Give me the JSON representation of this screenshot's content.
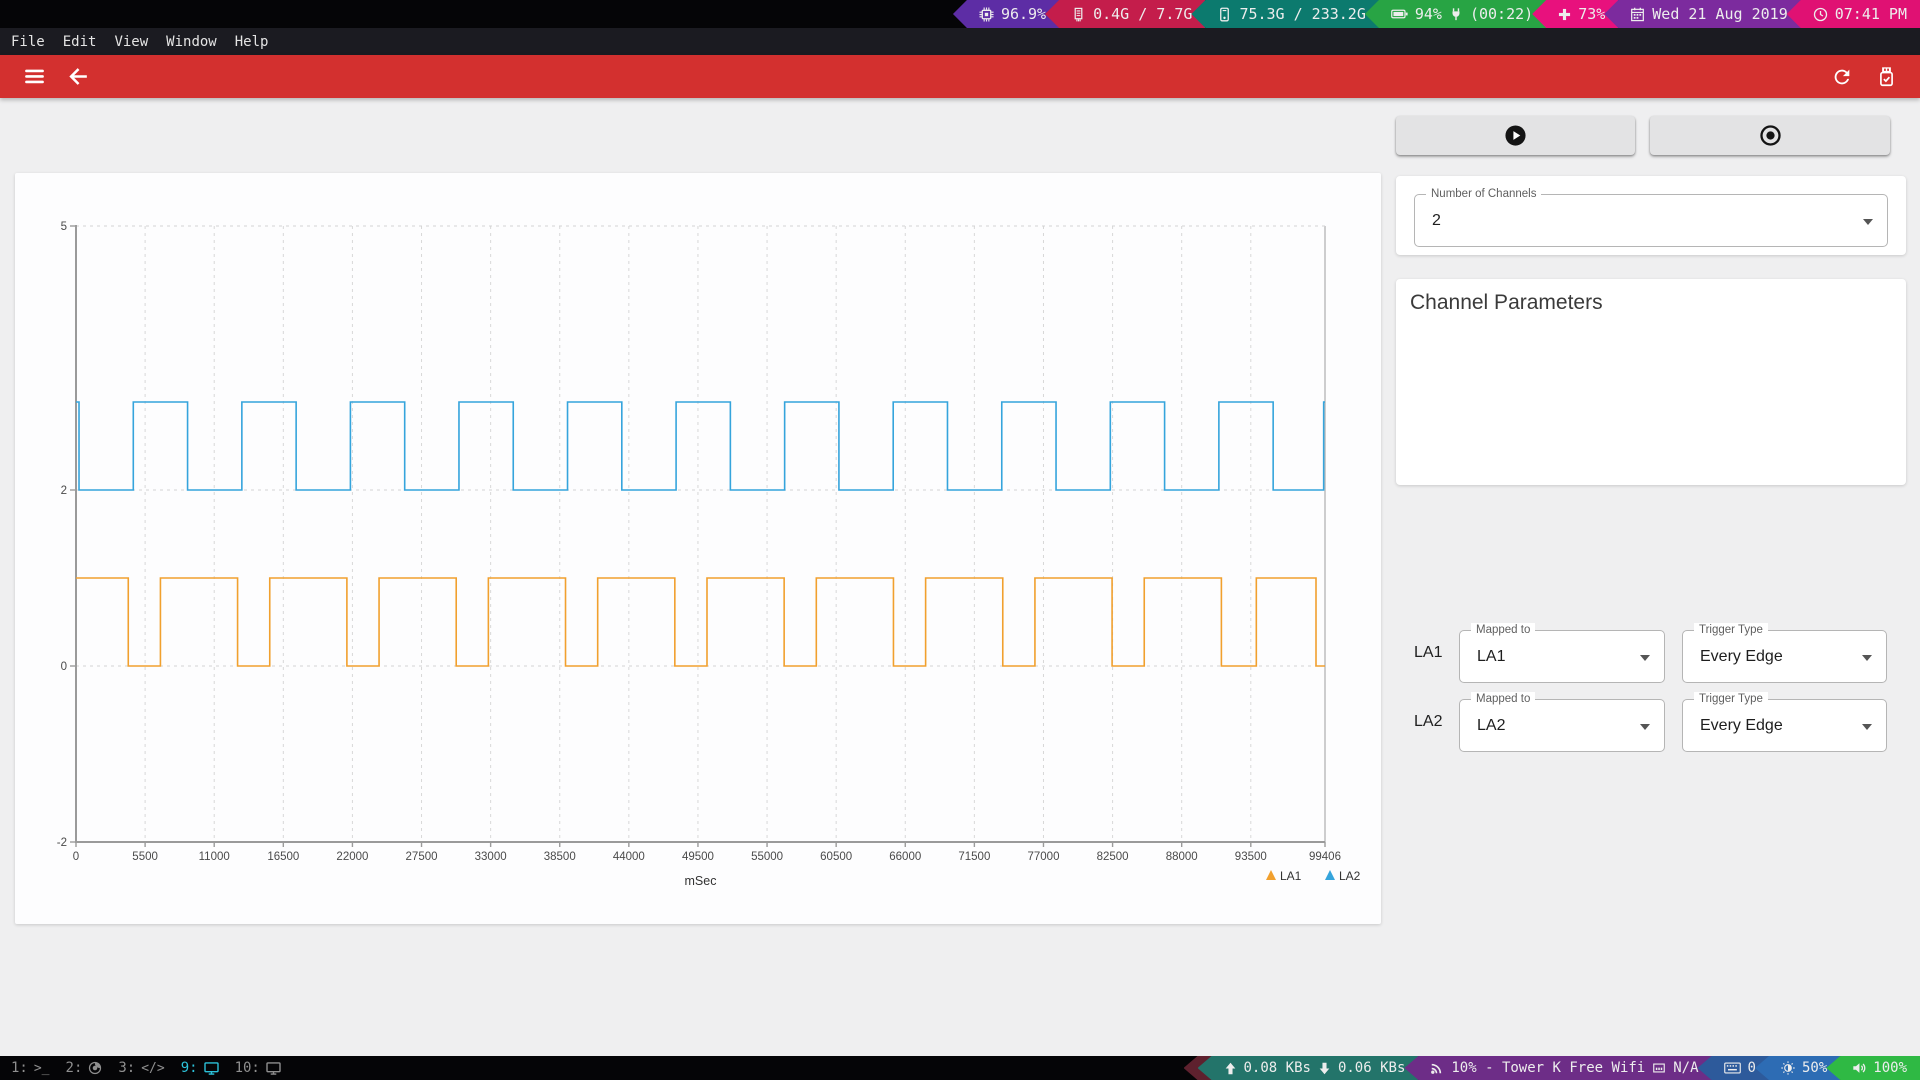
{
  "system_bar": {
    "segments": [
      {
        "name": "cpu-usage",
        "color": "#5d2da5",
        "parts": [
          {
            "icon": "cpu-icon",
            "text": "96.9%"
          }
        ]
      },
      {
        "name": "memory-usage",
        "color": "#c41d4b",
        "parts": [
          {
            "icon": "memory-icon",
            "text": "0.4G / 7.7G"
          }
        ]
      },
      {
        "name": "disk-usage",
        "color": "#0c7a6e",
        "parts": [
          {
            "icon": "disk-icon",
            "text": "75.3G / 233.2G"
          }
        ]
      },
      {
        "name": "battery",
        "color": "#28a444",
        "parts": [
          {
            "icon": "battery-icon",
            "text": "94%"
          },
          {
            "icon": "plug-icon",
            "text": "(00:22)"
          }
        ]
      },
      {
        "name": "updates",
        "color": "#e8117d",
        "parts": [
          {
            "icon": "plus-icon",
            "text": "73%"
          }
        ]
      },
      {
        "name": "date",
        "color": "#7c2b9e",
        "parts": [
          {
            "icon": "calendar-icon",
            "text": "Wed 21 Aug 2019"
          }
        ]
      },
      {
        "name": "clock",
        "color": "#e01173",
        "parts": [
          {
            "icon": "clock-icon",
            "text": "07:41 PM"
          }
        ]
      }
    ]
  },
  "menu_bar": {
    "items": [
      "File",
      "Edit",
      "View",
      "Window",
      "Help"
    ]
  },
  "taskbar": {
    "workspaces": [
      {
        "id": "1",
        "label": "1:",
        "icon": "terminal-icon",
        "glyph": ">_",
        "active": false
      },
      {
        "id": "2",
        "label": "2:",
        "icon": "firefox-icon",
        "glyph": "",
        "active": false
      },
      {
        "id": "3",
        "label": "3:",
        "icon": "code-icon",
        "glyph": "</>",
        "active": false
      },
      {
        "id": "9",
        "label": "9:",
        "icon": "monitor-icon",
        "glyph": "",
        "active": true
      },
      {
        "id": "10",
        "label": "10:",
        "icon": "monitor-icon",
        "glyph": "",
        "active": false
      }
    ],
    "segments": [
      {
        "name": "lead",
        "color": "#5e212e",
        "parts": []
      },
      {
        "name": "network-rate",
        "color": "#23746a",
        "parts": [
          {
            "icon": "upload-icon",
            "text": "0.08 KBs"
          },
          {
            "icon": "download-icon",
            "text": "0.06 KBs"
          }
        ]
      },
      {
        "name": "wifi",
        "color": "#6d2d87",
        "parts": [
          {
            "icon": "wifi-icon",
            "text": "10% - Tower K Free Wifi"
          },
          {
            "icon": "ethernet-icon",
            "text": "N/A"
          }
        ]
      },
      {
        "name": "keyboard-layout",
        "color": "#2d5a9b",
        "parts": [
          {
            "icon": "keyboard-icon",
            "text": "0"
          }
        ]
      },
      {
        "name": "brightness",
        "color": "#2d6cb4",
        "parts": [
          {
            "icon": "brightness-icon",
            "text": "50%"
          }
        ]
      },
      {
        "name": "volume",
        "color": "#2fb944",
        "parts": [
          {
            "icon": "volume-icon",
            "text": "100%"
          }
        ]
      }
    ]
  },
  "side_panel": {
    "number_of_channels": {
      "label": "Number of Channels",
      "value": "2"
    },
    "channel_parameters": {
      "title": "Channel Parameters",
      "rows": [
        {
          "channel": "LA1",
          "mapped": {
            "label": "Mapped to",
            "value": "LA1"
          },
          "trigger": {
            "label": "Trigger Type",
            "value": "Every Edge"
          }
        },
        {
          "channel": "LA2",
          "mapped": {
            "label": "Mapped to",
            "value": "LA2"
          },
          "trigger": {
            "label": "Trigger Type",
            "value": "Every Edge"
          }
        }
      ]
    }
  },
  "chart_data": {
    "type": "line",
    "title": "",
    "xlabel": "mSec",
    "ylabel": "",
    "xlim": [
      0,
      99406
    ],
    "ylim": [
      -2,
      5
    ],
    "x_ticks": [
      0,
      5500,
      11000,
      16500,
      22000,
      27500,
      33000,
      38500,
      44000,
      49500,
      55000,
      60500,
      66000,
      71500,
      77000,
      82500,
      88000,
      93500,
      99406
    ],
    "y_ticks": [
      5,
      2,
      0,
      -2
    ],
    "grid": "dashed",
    "legend_position": "bottom-right",
    "series": [
      {
        "name": "LA1",
        "color": "#f1a02e",
        "low": 0,
        "high": 1,
        "initial": "high",
        "toggle_times_msec": [
          4160,
          6720,
          12860,
          15420,
          21560,
          24120,
          30260,
          32820,
          38960,
          41520,
          47660,
          50220,
          56360,
          58920,
          65060,
          67620,
          73760,
          76320,
          82460,
          85020,
          91160,
          93940,
          98690
        ]
      },
      {
        "name": "LA2",
        "color": "#35a4dc",
        "low": 2,
        "high": 3,
        "initial": "high",
        "toggle_times_msec": [
          240,
          4560,
          8880,
          13200,
          17520,
          21840,
          26160,
          30480,
          34800,
          39120,
          43440,
          47760,
          52080,
          56400,
          60720,
          65040,
          69360,
          73680,
          78000,
          82320,
          86640,
          90960,
          95280,
          99300
        ]
      }
    ]
  }
}
